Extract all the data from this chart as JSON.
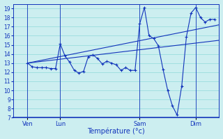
{
  "xlabel": "Température (°c)",
  "background_color": "#cceef0",
  "grid_color": "#99dddd",
  "line_color": "#1133bb",
  "ylim": [
    7,
    19.5
  ],
  "yticks": [
    7,
    8,
    9,
    10,
    11,
    12,
    13,
    14,
    15,
    16,
    17,
    18,
    19
  ],
  "xlim": [
    0,
    44
  ],
  "vline_positions": [
    3,
    10,
    27,
    39
  ],
  "xtick_positions": [
    3,
    10,
    27,
    39
  ],
  "xtick_labels": [
    "Ven",
    "Lun",
    "Sam",
    "Dim"
  ],
  "series_detail": {
    "x": [
      3,
      4,
      5,
      6,
      7,
      8,
      9,
      10,
      11,
      12,
      13,
      14,
      15,
      16,
      17,
      18,
      19,
      20,
      21,
      22,
      23,
      24,
      25,
      26,
      27,
      28,
      29,
      30,
      31,
      32,
      33,
      34,
      35,
      36,
      37,
      38,
      39,
      40,
      41,
      42,
      43
    ],
    "y": [
      13.0,
      12.6,
      12.5,
      12.5,
      12.5,
      12.4,
      12.4,
      15.1,
      13.8,
      13.1,
      12.2,
      11.9,
      12.1,
      13.7,
      13.9,
      13.5,
      12.9,
      13.2,
      13.0,
      12.8,
      12.2,
      12.5,
      12.2,
      12.2,
      17.3,
      19.1,
      16.0,
      15.7,
      14.9,
      12.3,
      10.0,
      8.3,
      7.3,
      10.5,
      15.9,
      18.5,
      19.1,
      18.0,
      17.5,
      17.8,
      17.8
    ]
  },
  "series_line1": {
    "x": [
      3,
      44
    ],
    "y": [
      13.0,
      15.5
    ]
  },
  "series_line2": {
    "x": [
      3,
      44
    ],
    "y": [
      13.0,
      17.2
    ]
  }
}
